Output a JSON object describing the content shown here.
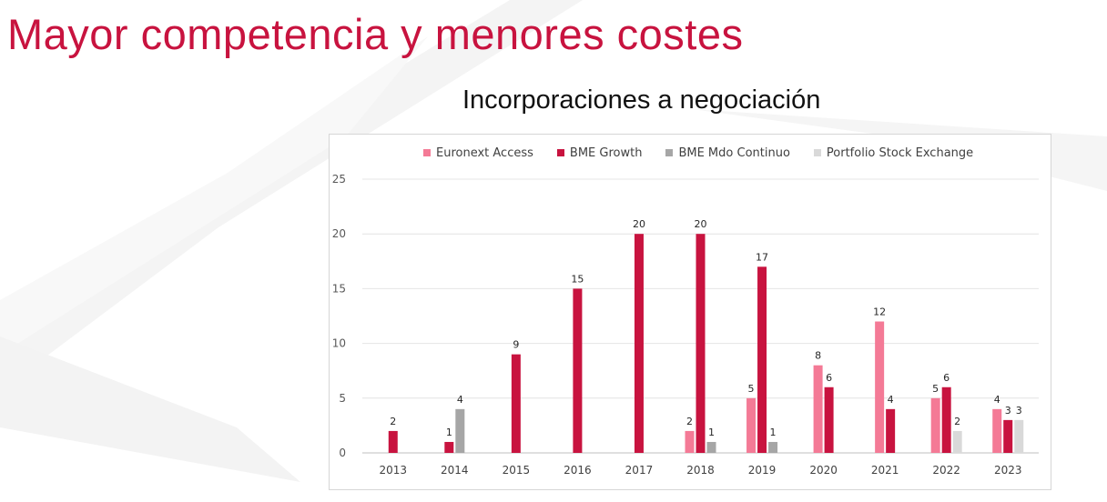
{
  "page": {
    "title": "Mayor competencia y menores costes"
  },
  "chart_data": {
    "type": "bar",
    "title": "Incorporaciones a negociación",
    "categories": [
      "2013",
      "2014",
      "2015",
      "2016",
      "2017",
      "2018",
      "2019",
      "2020",
      "2021",
      "2022",
      "2023"
    ],
    "series": [
      {
        "name": "Euronext Access",
        "color": "#f47a96",
        "values": [
          null,
          null,
          null,
          null,
          null,
          2,
          5,
          8,
          12,
          5,
          4
        ]
      },
      {
        "name": "BME Growth",
        "color": "#c8133f",
        "values": [
          2,
          1,
          9,
          15,
          20,
          20,
          17,
          6,
          4,
          6,
          3
        ]
      },
      {
        "name": "BME Mdo Continuo",
        "color": "#a6a6a6",
        "values": [
          null,
          4,
          null,
          null,
          null,
          1,
          1,
          null,
          null,
          null,
          null
        ]
      },
      {
        "name": "Portfolio Stock Exchange",
        "color": "#d9d9d9",
        "values": [
          null,
          null,
          null,
          null,
          null,
          null,
          null,
          null,
          null,
          2,
          3
        ]
      }
    ],
    "yticks": [
      "0",
      "5",
      "10",
      "15",
      "20",
      "25"
    ],
    "ylim": [
      0,
      25
    ],
    "xlabel": "",
    "ylabel": "",
    "grid": true,
    "legend_position": "top"
  }
}
